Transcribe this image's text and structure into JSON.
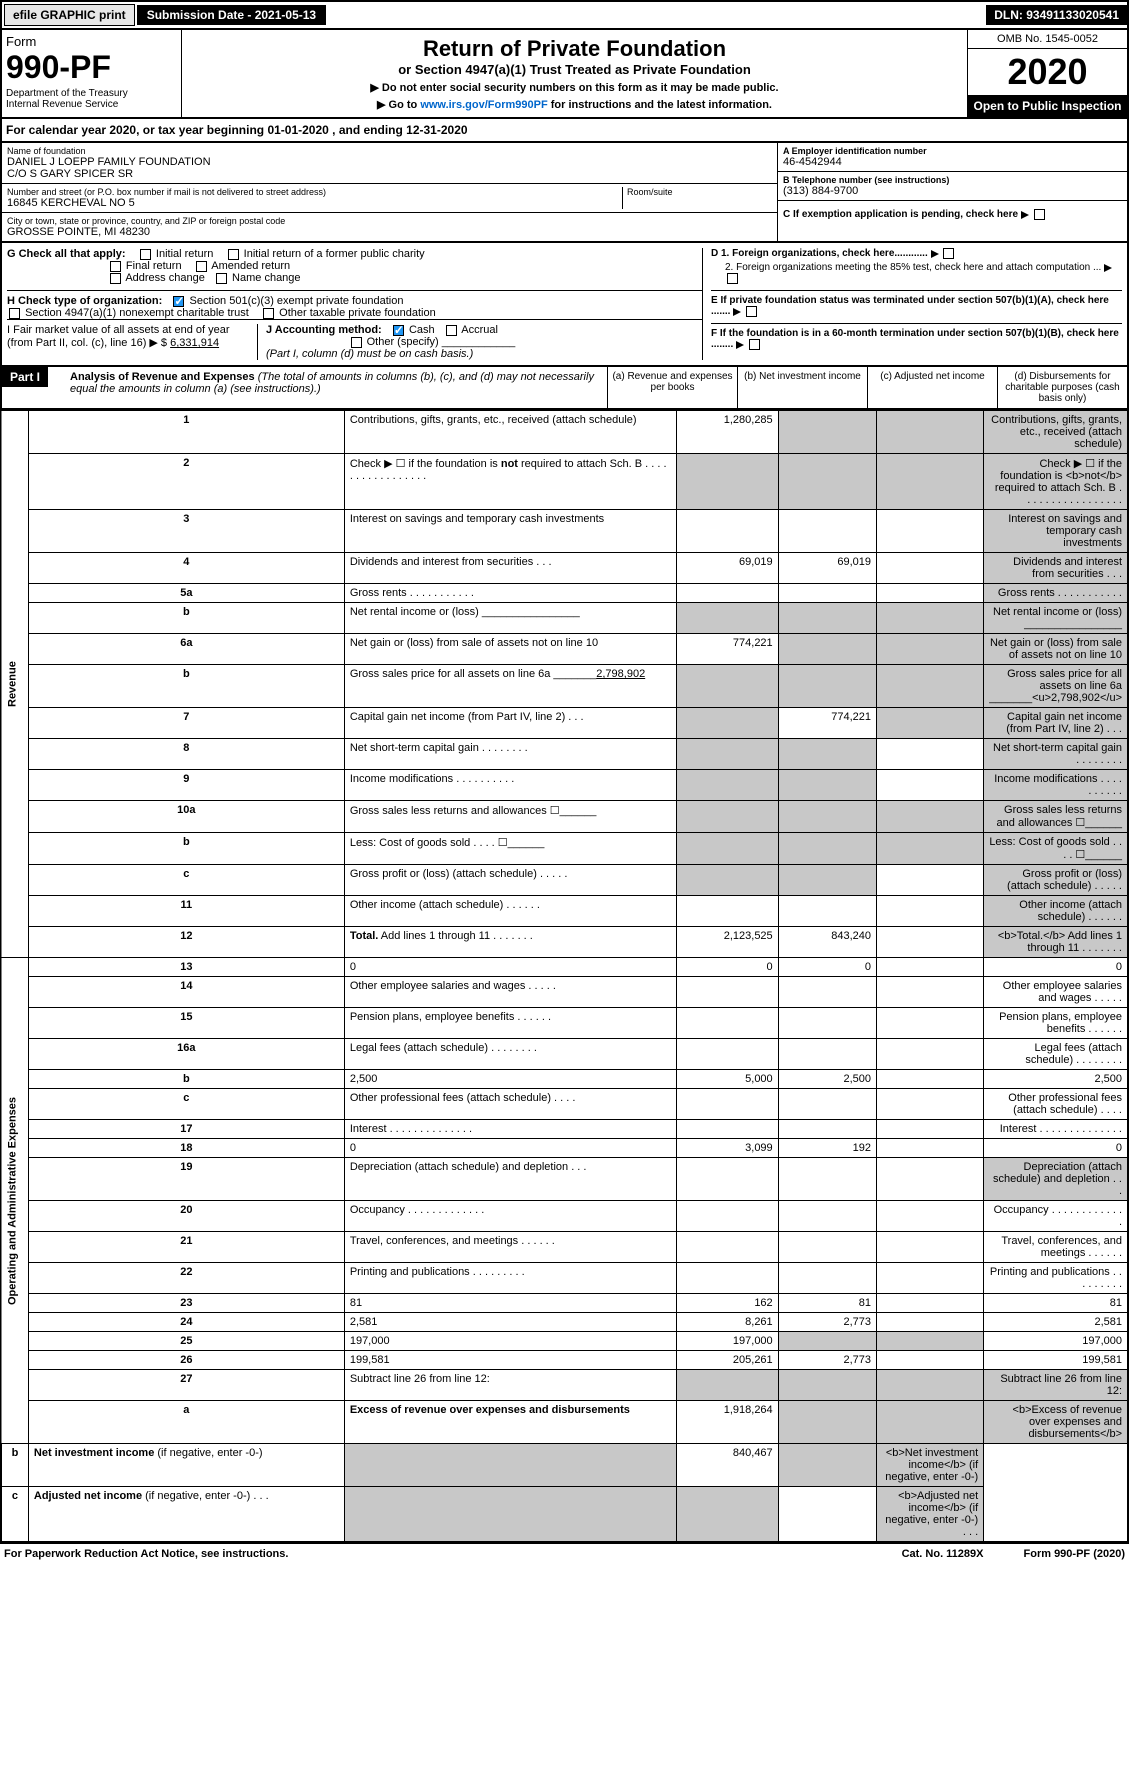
{
  "top": {
    "efile": "efile GRAPHIC print",
    "submission": "Submission Date - 2021-05-13",
    "dln": "DLN: 93491133020541"
  },
  "header": {
    "form_word": "Form",
    "form_number": "990-PF",
    "dept": "Department of the Treasury\nInternal Revenue Service",
    "title": "Return of Private Foundation",
    "subtitle": "or Section 4947(a)(1) Trust Treated as Private Foundation",
    "note1": "▶ Do not enter social security numbers on this form as it may be made public.",
    "note2_pre": "▶ Go to ",
    "note2_link": "www.irs.gov/Form990PF",
    "note2_post": " for instructions and the latest information.",
    "omb": "OMB No. 1545-0052",
    "year": "2020",
    "open": "Open to Public Inspection"
  },
  "cal": "For calendar year 2020, or tax year beginning 01-01-2020                                , and ending 12-31-2020",
  "name": {
    "lbl": "Name of foundation",
    "val": "DANIEL J LOEPP FAMILY FOUNDATION\nC/O S GARY SPICER SR"
  },
  "address": {
    "lbl": "Number and street (or P.O. box number if mail is not delivered to street address)",
    "room_lbl": "Room/suite",
    "val": "16845 KERCHEVAL NO 5"
  },
  "city": {
    "lbl": "City or town, state or province, country, and ZIP or foreign postal code",
    "val": "GROSSE POINTE, MI  48230"
  },
  "ein": {
    "lbl": "A Employer identification number",
    "val": "46-4542944"
  },
  "phone": {
    "lbl": "B Telephone number (see instructions)",
    "val": "(313) 884-9700"
  },
  "sectionC": "C If exemption application is pending, check here",
  "sectionG": {
    "lbl": "G Check all that apply:",
    "opts": [
      "Initial return",
      "Initial return of a former public charity",
      "Final return",
      "Amended return",
      "Address change",
      "Name change"
    ]
  },
  "sectionH": {
    "lbl": "H Check type of organization:",
    "opt1": "Section 501(c)(3) exempt private foundation",
    "opt2": "Section 4947(a)(1) nonexempt charitable trust",
    "opt3": "Other taxable private foundation"
  },
  "sectionD": {
    "d1": "D 1. Foreign organizations, check here............",
    "d2": "2. Foreign organizations meeting the 85% test, check here and attach computation ..."
  },
  "sectionE": "E  If private foundation status was terminated under section 507(b)(1)(A), check here .......",
  "sectionF": "F  If the foundation is in a 60-month termination under section 507(b)(1)(B), check here ........",
  "sectionI": {
    "lbl": "I Fair market value of all assets at end of year (from Part II, col. (c), line 16) ▶ $",
    "val": "6,331,914"
  },
  "sectionJ": {
    "lbl": "J Accounting method:",
    "cash": "Cash",
    "accrual": "Accrual",
    "other": "Other (specify)",
    "note": "(Part I, column (d) must be on cash basis.)"
  },
  "part1": {
    "label": "Part I",
    "title": "Analysis of Revenue and Expenses",
    "desc": " (The total of amounts in columns (b), (c), and (d) may not necessarily equal the amounts in column (a) (see instructions).)",
    "cols": {
      "a": "(a)    Revenue and expenses per books",
      "b": "(b)   Net investment income",
      "c": "(c)   Adjusted net income",
      "d": "(d)   Disbursements for charitable purposes (cash basis only)"
    }
  },
  "vtabs": {
    "rev": "Revenue",
    "exp": "Operating and Administrative Expenses"
  },
  "rows": [
    {
      "n": "1",
      "d": "Contributions, gifts, grants, etc., received (attach schedule)",
      "a": "1,280,285",
      "bs": true,
      "cs": true,
      "ds": true
    },
    {
      "n": "2",
      "d": "Check ▶ ☐ if the foundation is <b>not</b> required to attach Sch. B  .  .  .  .  .  .  .  .  .  .  .  .  .  .  .  .  .",
      "bs": true,
      "cs": true,
      "ds": true,
      "as": true
    },
    {
      "n": "3",
      "d": "Interest on savings and temporary cash investments",
      "ds": true
    },
    {
      "n": "4",
      "d": "Dividends and interest from securities   .   .   .",
      "a": "69,019",
      "b": "69,019",
      "ds": true
    },
    {
      "n": "5a",
      "d": "Gross rents   .  .  .  .  .  .  .  .  .  .  .",
      "ds": true
    },
    {
      "n": "b",
      "d": "Net rental income or (loss)  ________________",
      "as": true,
      "ds": true,
      "cs": true,
      "bs": true
    },
    {
      "n": "6a",
      "d": "Net gain or (loss) from sale of assets not on line 10",
      "a": "774,221",
      "bs": true,
      "cs": true,
      "ds": true
    },
    {
      "n": "b",
      "d": "Gross sales price for all assets on line 6a _______<u>2,798,902</u>",
      "as": true,
      "bs": true,
      "cs": true,
      "ds": true
    },
    {
      "n": "7",
      "d": "Capital gain net income (from Part IV, line 2)   .   .   .",
      "as": true,
      "b": "774,221",
      "cs": true,
      "ds": true
    },
    {
      "n": "8",
      "d": "Net short-term capital gain   .  .  .  .  .  .  .  .",
      "as": true,
      "bs": true,
      "ds": true
    },
    {
      "n": "9",
      "d": "Income modifications  .  .  .  .  .  .  .  .  .  .",
      "as": true,
      "bs": true,
      "ds": true
    },
    {
      "n": "10a",
      "d": "Gross sales less returns and allowances  ☐______",
      "as": true,
      "bs": true,
      "cs": true,
      "ds": true
    },
    {
      "n": "b",
      "d": "Less: Cost of goods sold   .   .   .   .  ☐______",
      "as": true,
      "bs": true,
      "cs": true,
      "ds": true
    },
    {
      "n": "c",
      "d": "Gross profit or (loss) (attach schedule)   .  .  .  .  .",
      "as": true,
      "bs": true,
      "ds": true
    },
    {
      "n": "11",
      "d": "Other income (attach schedule)   .  .  .  .  .  .",
      "ds": true
    },
    {
      "n": "12",
      "d": "<b>Total.</b> Add lines 1 through 11   .  .  .  .  .  .  .",
      "a": "2,123,525",
      "b": "843,240",
      "ds": true
    },
    {
      "n": "13",
      "d": "0",
      "a": "0",
      "b": "0"
    },
    {
      "n": "14",
      "d": "Other employee salaries and wages   .  .  .  .  ."
    },
    {
      "n": "15",
      "d": "Pension plans, employee benefits   .  .  .  .  .  ."
    },
    {
      "n": "16a",
      "d": "Legal fees (attach schedule)  .  .  .  .  .  .  .  ."
    },
    {
      "n": "b",
      "d": "2,500",
      "a": "5,000",
      "b": "2,500"
    },
    {
      "n": "c",
      "d": "Other professional fees (attach schedule)   .  .  .  ."
    },
    {
      "n": "17",
      "d": "Interest  .  .  .  .  .  .  .  .  .  .  .  .  .  ."
    },
    {
      "n": "18",
      "d": "0",
      "a": "3,099",
      "b": "192"
    },
    {
      "n": "19",
      "d": "Depreciation (attach schedule) and depletion   .  .  .",
      "ds": true
    },
    {
      "n": "20",
      "d": "Occupancy  .  .  .  .  .  .  .  .  .  .  .  .  ."
    },
    {
      "n": "21",
      "d": "Travel, conferences, and meetings  .  .  .  .  .  ."
    },
    {
      "n": "22",
      "d": "Printing and publications  .  .  .  .  .  .  .  .  ."
    },
    {
      "n": "23",
      "d": "81",
      "a": "162",
      "b": "81"
    },
    {
      "n": "24",
      "d": "2,581",
      "a": "8,261",
      "b": "2,773"
    },
    {
      "n": "25",
      "d": "197,000",
      "a": "197,000",
      "bs": true,
      "cs": true
    },
    {
      "n": "26",
      "d": "199,581",
      "a": "205,261",
      "b": "2,773"
    },
    {
      "n": "27",
      "d": "Subtract line 26 from line 12:",
      "as": true,
      "bs": true,
      "cs": true,
      "ds": true
    },
    {
      "n": "a",
      "d": "<b>Excess of revenue over expenses and disbursements</b>",
      "a": "1,918,264",
      "bs": true,
      "cs": true,
      "ds": true
    },
    {
      "n": "b",
      "d": "<b>Net investment income</b> (if negative, enter -0-)",
      "as": true,
      "b": "840,467",
      "cs": true,
      "ds": true
    },
    {
      "n": "c",
      "d": "<b>Adjusted net income</b> (if negative, enter -0-)   .   .   .",
      "as": true,
      "bs": true,
      "ds": true
    }
  ],
  "footer": {
    "left": "For Paperwork Reduction Act Notice, see instructions.",
    "mid": "Cat. No. 11289X",
    "right": "Form 990-PF (2020)"
  }
}
